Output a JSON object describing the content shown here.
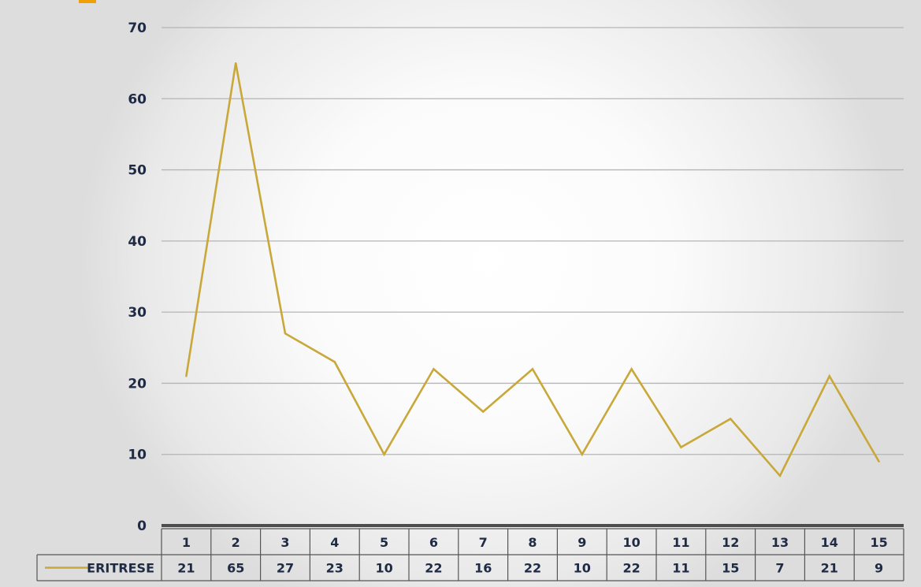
{
  "chart_data": {
    "type": "line",
    "categories": [
      "1",
      "2",
      "3",
      "4",
      "5",
      "6",
      "7",
      "8",
      "9",
      "10",
      "11",
      "12",
      "13",
      "14",
      "15"
    ],
    "series": [
      {
        "name": "ERITRESE",
        "values": [
          21,
          65,
          27,
          23,
          10,
          22,
          16,
          22,
          10,
          22,
          11,
          15,
          7,
          21,
          9
        ]
      }
    ],
    "ylim": [
      0,
      70
    ],
    "yticks": [
      0,
      10,
      20,
      30,
      40,
      50,
      60,
      70
    ],
    "grid": true,
    "legend": "data-table",
    "title": "",
    "xlabel": "",
    "ylabel": "",
    "colors": {
      "line": "#c9a83a",
      "grid": "#b5b5b5",
      "axis": "#4d4d4d",
      "text": "#1f2a44",
      "accent": "#f0a000"
    }
  }
}
